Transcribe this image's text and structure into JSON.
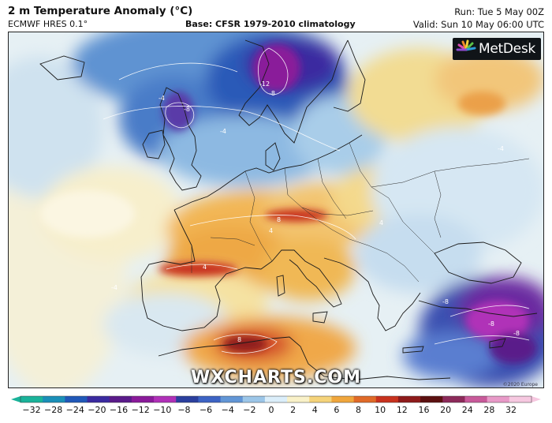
{
  "header": {
    "title": "2 m Temperature Anomaly (°C)",
    "model": "ECMWF HRES 0.1°",
    "base": "Base: CFSR 1979-2010 climatology",
    "run": "Run: Tue 5 May 00Z",
    "valid": "Valid: Sun 10 May 06:00 UTC"
  },
  "brand": {
    "name": "MetDesk",
    "icon": "metdesk-logo"
  },
  "watermark": "WXCHARTS.COM",
  "copyright": "©2020 Europe",
  "map": {
    "contour_labels": [
      "-12",
      "-8",
      "-8",
      "-4",
      "-4",
      "-4",
      "-4",
      "4",
      "4",
      "8",
      "8",
      "-8",
      "-8",
      "-8",
      "4"
    ]
  },
  "colorbar": {
    "ticks": [
      "−32",
      "−28",
      "−24",
      "−20",
      "−16",
      "−12",
      "−10",
      "−8",
      "−6",
      "−4",
      "−2",
      "0",
      "2",
      "4",
      "6",
      "8",
      "10",
      "12",
      "16",
      "20",
      "24",
      "28",
      "32"
    ],
    "colors": [
      "#1ab39a",
      "#1a8fb8",
      "#2058b8",
      "#3a2aa0",
      "#5a1a8a",
      "#8a1a9a",
      "#b030b8",
      "#2b3f9e",
      "#3c63c4",
      "#6296d6",
      "#9cc6e8",
      "#dbeefa",
      "#f9f1c8",
      "#f5d37a",
      "#f0a63c",
      "#e06a28",
      "#c8321e",
      "#8e1a1a",
      "#5c1010",
      "#8c2a5a",
      "#c85a9a",
      "#e89ac8",
      "#f6c8e0"
    ]
  }
}
